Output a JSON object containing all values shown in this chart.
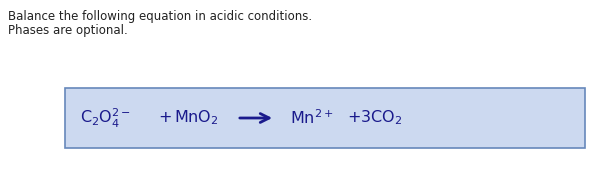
{
  "title_line1": "Balance the following equation in acidic conditions.",
  "title_line2": "Phases are optional.",
  "background_color": "#ffffff",
  "box_bg_color": "#ccd9f0",
  "box_border_color": "#6688bb",
  "text_color": "#222222",
  "equation_color": "#1a1a8c",
  "title_fontsize": 8.5,
  "eq_fontsize": 11.5,
  "fig_width": 5.91,
  "fig_height": 1.94,
  "fig_dpi": 100
}
